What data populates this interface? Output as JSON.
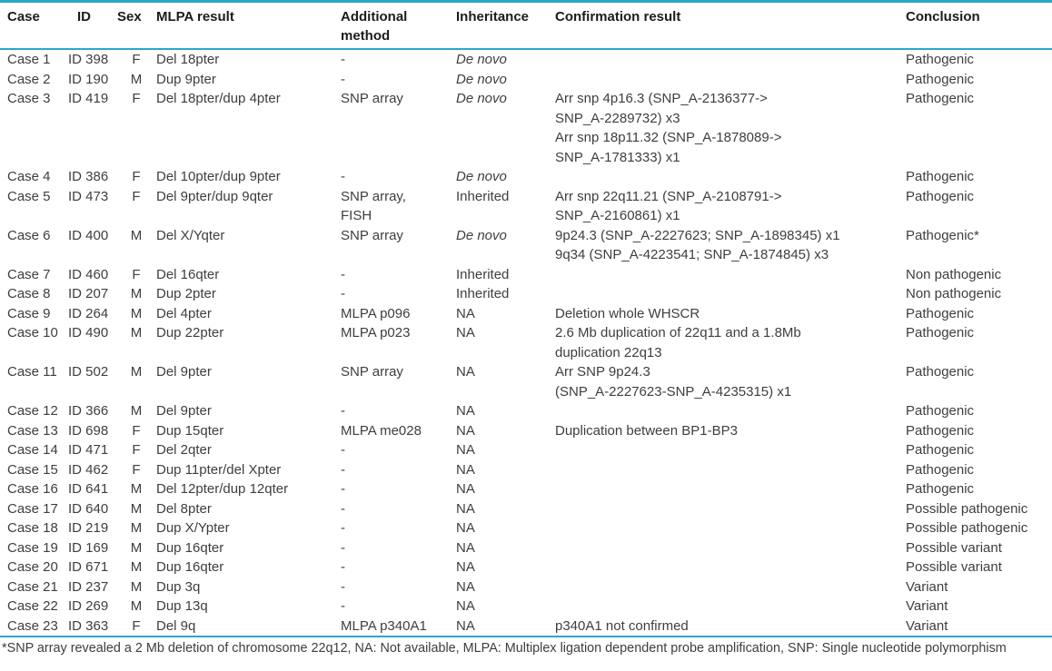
{
  "colors": {
    "rule": "#2ba7c9",
    "text": "#3e3e3e",
    "header_text": "#1c1c1c",
    "background": "#ffffff"
  },
  "table": {
    "columns": [
      {
        "key": "case",
        "label": "Case"
      },
      {
        "key": "id",
        "label": "ID"
      },
      {
        "key": "sex",
        "label": "Sex"
      },
      {
        "key": "mlpa",
        "label": "MLPA result"
      },
      {
        "key": "method",
        "label": "Additional method"
      },
      {
        "key": "inheritance",
        "label": "Inheritance"
      },
      {
        "key": "confirmation",
        "label": "Confirmation result"
      },
      {
        "key": "conclusion",
        "label": "Conclusion"
      }
    ],
    "rows": [
      {
        "case": "Case 1",
        "id": "ID 398",
        "sex": "F",
        "mlpa": "Del 18pter",
        "method": "-",
        "inheritance": "De novo",
        "inheritance_italic": true,
        "confirmation": "",
        "conclusion": "Pathogenic"
      },
      {
        "case": "Case 2",
        "id": "ID 190",
        "sex": "M",
        "mlpa": "Dup 9pter",
        "method": "-",
        "inheritance": "De novo",
        "inheritance_italic": true,
        "confirmation": "",
        "conclusion": "Pathogenic"
      },
      {
        "case": "Case 3",
        "id": "ID 419",
        "sex": "F",
        "mlpa": "Del 18pter/dup 4pter",
        "method": "SNP array",
        "inheritance": "De novo",
        "inheritance_italic": true,
        "confirmation": "Arr snp 4p16.3 (SNP_A-2136377->\nSNP_A-2289732) x3\nArr snp 18p11.32 (SNP_A-1878089->\nSNP_A-1781333) x1",
        "conclusion": "Pathogenic"
      },
      {
        "case": "Case 4",
        "id": "ID 386",
        "sex": "F",
        "mlpa": "Del 10pter/dup 9pter",
        "method": "-",
        "inheritance": "De novo",
        "inheritance_italic": true,
        "confirmation": "",
        "conclusion": "Pathogenic"
      },
      {
        "case": "Case 5",
        "id": "ID 473",
        "sex": "F",
        "mlpa": "Del 9pter/dup 9qter",
        "method": "SNP array,\nFISH",
        "inheritance": "Inherited",
        "inheritance_italic": false,
        "confirmation": "Arr snp 22q11.21 (SNP_A-2108791->\nSNP_A-2160861) x1",
        "conclusion": "Pathogenic"
      },
      {
        "case": "Case 6",
        "id": "ID 400",
        "sex": "M",
        "mlpa": "Del X/Yqter",
        "method": "SNP array",
        "inheritance": "De novo",
        "inheritance_italic": true,
        "confirmation": "9p24.3 (SNP_A-2227623; SNP_A-1898345) x1\n9q34 (SNP_A-4223541; SNP_A-1874845) x3",
        "conclusion": "Pathogenic*"
      },
      {
        "case": "Case 7",
        "id": "ID 460",
        "sex": "F",
        "mlpa": "Del 16qter",
        "method": "-",
        "inheritance": "Inherited",
        "inheritance_italic": false,
        "confirmation": "",
        "conclusion": "Non pathogenic"
      },
      {
        "case": "Case 8",
        "id": "ID 207",
        "sex": "M",
        "mlpa": "Dup 2pter",
        "method": "-",
        "inheritance": "Inherited",
        "inheritance_italic": false,
        "confirmation": "",
        "conclusion": "Non pathogenic"
      },
      {
        "case": "Case 9",
        "id": "ID 264",
        "sex": "M",
        "mlpa": "Del 4pter",
        "method": "MLPA p096",
        "inheritance": "NA",
        "inheritance_italic": false,
        "confirmation": "Deletion whole WHSCR",
        "conclusion": "Pathogenic"
      },
      {
        "case": "Case 10",
        "id": "ID 490",
        "sex": "M",
        "mlpa": "Dup 22pter",
        "method": "MLPA p023",
        "inheritance": "NA",
        "inheritance_italic": false,
        "confirmation": "2.6 Mb duplication of 22q11 and a 1.8Mb\nduplication 22q13",
        "conclusion": "Pathogenic"
      },
      {
        "case": "Case 11",
        "id": "ID 502",
        "sex": "M",
        "mlpa": "Del 9pter",
        "method": "SNP array",
        "inheritance": "NA",
        "inheritance_italic": false,
        "confirmation": "Arr SNP 9p24.3\n(SNP_A-2227623-SNP_A-4235315) x1",
        "conclusion": "Pathogenic"
      },
      {
        "case": "Case 12",
        "id": "ID 366",
        "sex": "M",
        "mlpa": "Del 9pter",
        "method": "-",
        "inheritance": "NA",
        "inheritance_italic": false,
        "confirmation": "",
        "conclusion": "Pathogenic"
      },
      {
        "case": "Case 13",
        "id": "ID 698",
        "sex": "F",
        "mlpa": "Dup 15qter",
        "method": "MLPA me028",
        "inheritance": "NA",
        "inheritance_italic": false,
        "confirmation": "Duplication between BP1-BP3",
        "conclusion": "Pathogenic"
      },
      {
        "case": "Case 14",
        "id": "ID 471",
        "sex": "F",
        "mlpa": "Del 2qter",
        "method": "-",
        "inheritance": "NA",
        "inheritance_italic": false,
        "confirmation": "",
        "conclusion": "Pathogenic"
      },
      {
        "case": "Case 15",
        "id": "ID 462",
        "sex": "F",
        "mlpa": "Dup 11pter/del Xpter",
        "method": "-",
        "inheritance": "NA",
        "inheritance_italic": false,
        "confirmation": "",
        "conclusion": "Pathogenic"
      },
      {
        "case": "Case 16",
        "id": "ID 641",
        "sex": "M",
        "mlpa": "Del 12pter/dup 12qter",
        "method": "-",
        "inheritance": "NA",
        "inheritance_italic": false,
        "confirmation": "",
        "conclusion": "Pathogenic"
      },
      {
        "case": "Case 17",
        "id": "ID 640",
        "sex": "M",
        "mlpa": "Del 8pter",
        "method": "-",
        "inheritance": "NA",
        "inheritance_italic": false,
        "confirmation": "",
        "conclusion": "Possible pathogenic"
      },
      {
        "case": "Case 18",
        "id": "ID 219",
        "sex": "M",
        "mlpa": "Dup X/Ypter",
        "method": "-",
        "inheritance": "NA",
        "inheritance_italic": false,
        "confirmation": "",
        "conclusion": "Possible pathogenic"
      },
      {
        "case": "Case 19",
        "id": "ID 169",
        "sex": "M",
        "mlpa": "Dup 16qter",
        "method": "-",
        "inheritance": "NA",
        "inheritance_italic": false,
        "confirmation": "",
        "conclusion": "Possible variant"
      },
      {
        "case": "Case 20",
        "id": "ID 671",
        "sex": "M",
        "mlpa": "Dup 16qter",
        "method": "-",
        "inheritance": "NA",
        "inheritance_italic": false,
        "confirmation": "",
        "conclusion": "Possible variant"
      },
      {
        "case": "Case 21",
        "id": "ID 237",
        "sex": "M",
        "mlpa": "Dup 3q",
        "method": "-",
        "inheritance": "NA",
        "inheritance_italic": false,
        "confirmation": "",
        "conclusion": "Variant"
      },
      {
        "case": "Case 22",
        "id": "ID 269",
        "sex": "M",
        "mlpa": "Dup 13q",
        "method": "-",
        "inheritance": "NA",
        "inheritance_italic": false,
        "confirmation": "",
        "conclusion": "Variant"
      },
      {
        "case": "Case 23",
        "id": "ID 363",
        "sex": "F",
        "mlpa": "Del 9q",
        "method": "MLPA p340A1",
        "inheritance": "NA",
        "inheritance_italic": false,
        "confirmation": "p340A1 not confirmed",
        "conclusion": "Variant"
      }
    ],
    "footnote": "*SNP array revealed a 2 Mb deletion of chromosome 22q12, NA: Not available, MLPA: Multiplex ligation dependent probe amplification, SNP: Single nucleotide polymorphism"
  }
}
